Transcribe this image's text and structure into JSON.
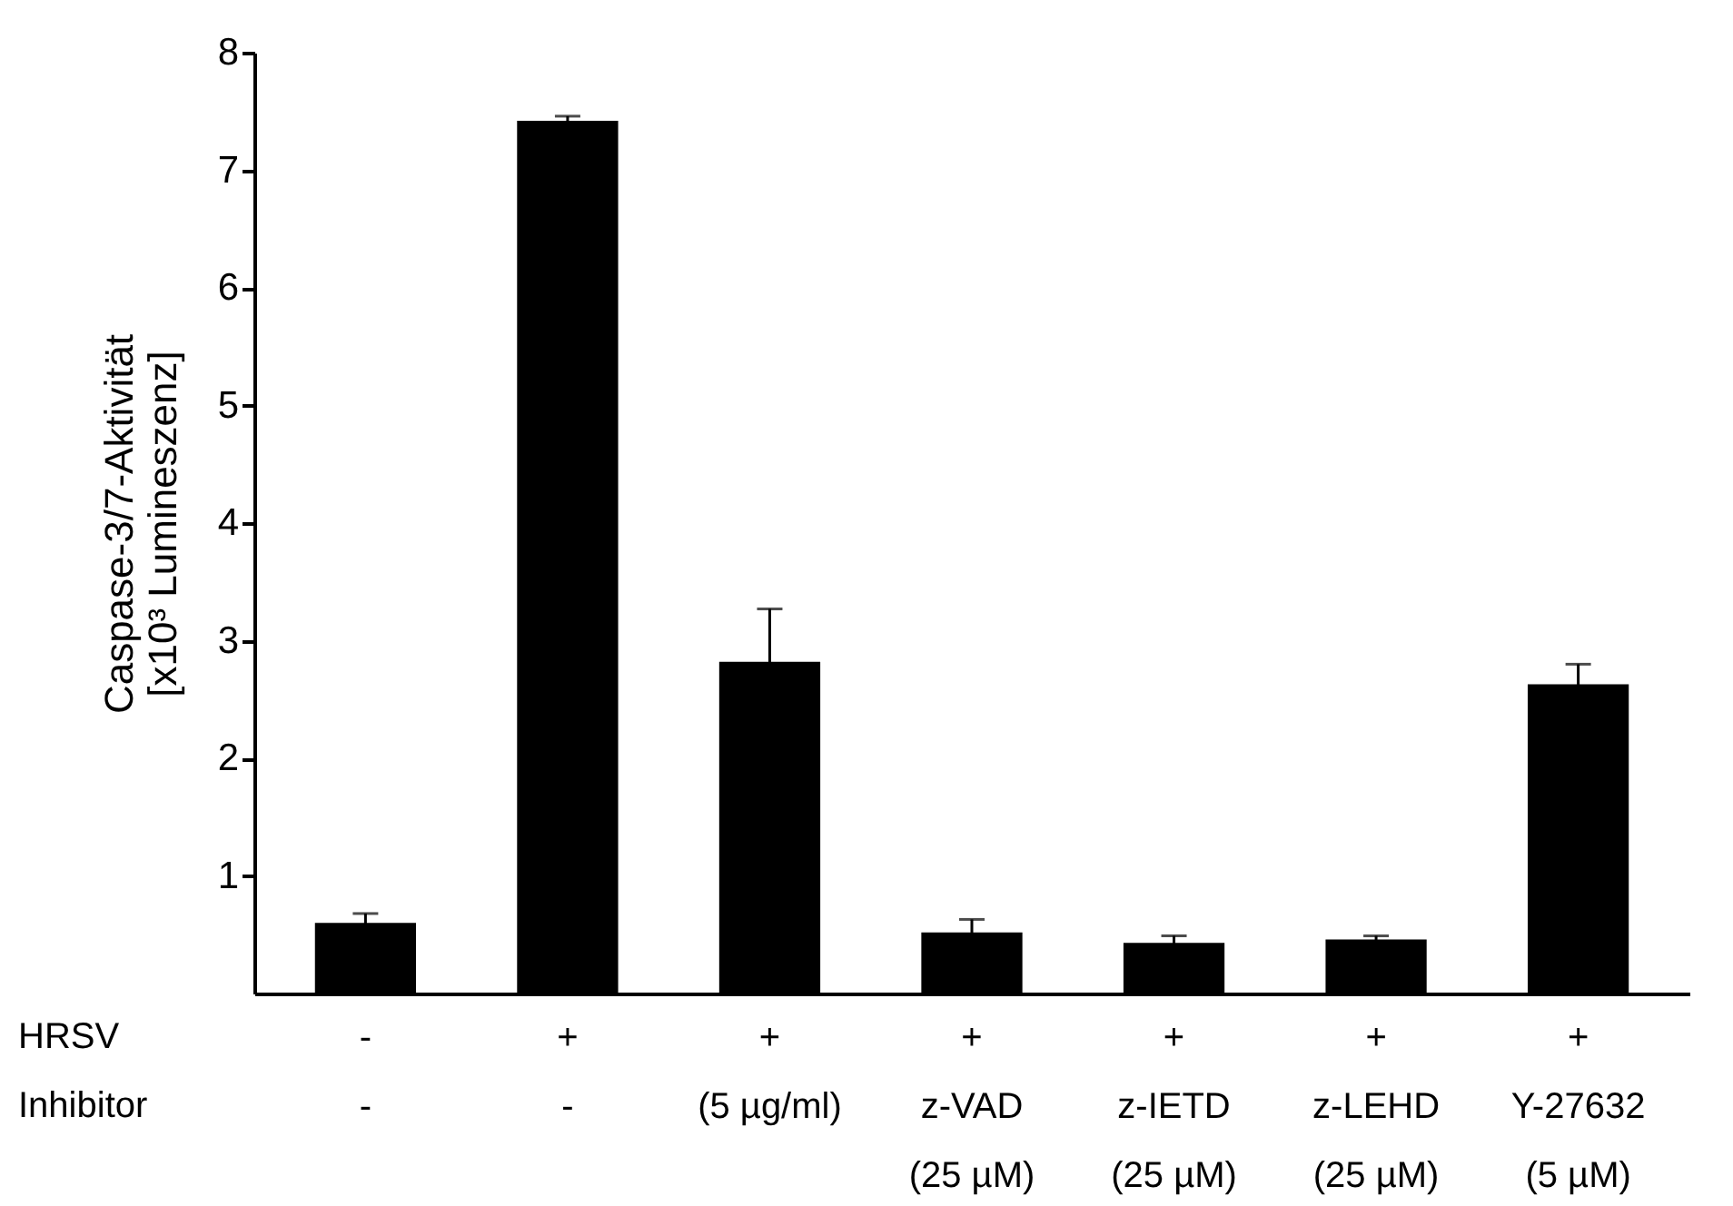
{
  "chart_data": {
    "type": "bar",
    "ylabel": "Caspase-3/7-Aktivität\n[x10³ Lumineszenz]",
    "categories": [
      "-\n-",
      "+\n-",
      "+\n\n(5 µg/ml)",
      "+\nz-VAD\n(25 µM)",
      "+\nz-IETD\n(25 µM)",
      "+\nz-LEHD\n(25 µM)",
      "+\nY-27632\n(5 µM)"
    ],
    "values": [
      0.6,
      7.42,
      2.82,
      0.52,
      0.43,
      0.46,
      2.63
    ],
    "errors": [
      0.08,
      0.04,
      0.45,
      0.11,
      0.06,
      0.03,
      0.17
    ],
    "color": "#000000",
    "ylim": [
      0,
      8
    ],
    "yticks": [
      1,
      2,
      3,
      4,
      5,
      6,
      7,
      8
    ],
    "grid": false,
    "annotations": [
      "HRSV",
      "Inhibitor"
    ]
  }
}
